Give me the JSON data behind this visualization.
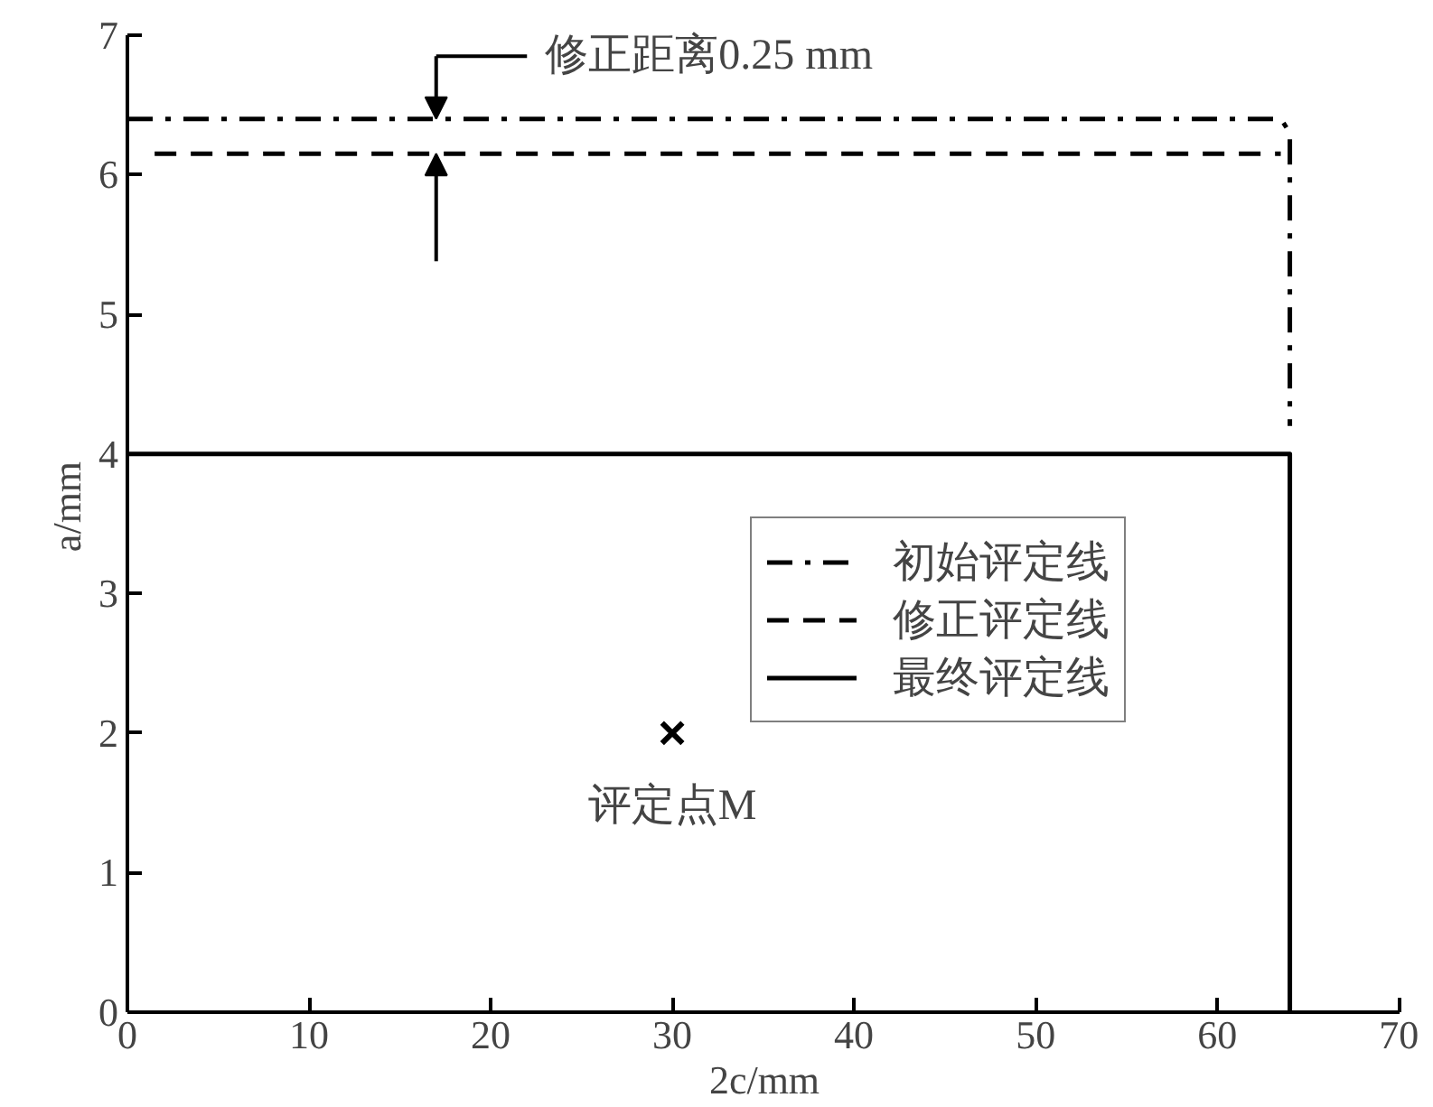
{
  "chart_data": {
    "type": "line",
    "xlabel": "2c/mm",
    "ylabel": "a/mm",
    "xlim": [
      0,
      70
    ],
    "ylim": [
      0,
      7
    ],
    "xticks": [
      0,
      10,
      20,
      30,
      40,
      50,
      60,
      70
    ],
    "yticks": [
      0,
      1,
      2,
      3,
      4,
      5,
      6,
      7
    ],
    "grid": false,
    "legend": "right",
    "marker": "none",
    "series": [
      {
        "name": "初始评定线",
        "color": "#000000",
        "line_style": "dashdot",
        "x": [
          0,
          63.5,
          64,
          64
        ],
        "values": [
          6.4,
          6.4,
          6.3,
          4.2
        ]
      },
      {
        "name": "修正评定线",
        "color": "#000000",
        "line_style": "dashed",
        "x": [
          1.5,
          63.5
        ],
        "values": [
          6.15,
          6.15
        ]
      },
      {
        "name": "最终评定线",
        "color": "#000000",
        "line_style": "solid",
        "x": [
          0,
          64,
          64
        ],
        "values": [
          4,
          4,
          0
        ]
      },
      {
        "type": "scatter",
        "color": "#000000",
        "marker": "cross",
        "x": [
          30
        ],
        "values": [
          2
        ]
      }
    ],
    "annotations": [
      {
        "text": "修正距离0.25 mm",
        "x": 17,
        "y": 6.4
      },
      {
        "text": "评定点M",
        "x": 30,
        "y": 2
      }
    ]
  }
}
